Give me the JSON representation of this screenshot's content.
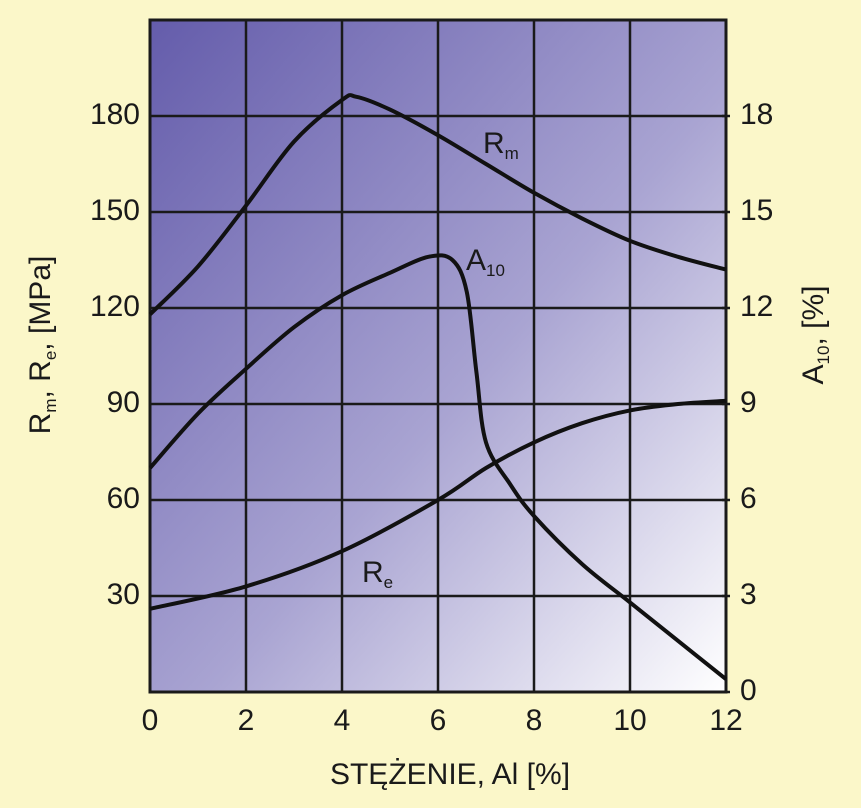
{
  "chart_data": {
    "type": "line",
    "xlabel": "STĘŻENIE, Al [%]",
    "ylabel": [
      {
        "text": "R"
      },
      {
        "sub": "m"
      },
      {
        "text": ", R"
      },
      {
        "sub": "e"
      },
      {
        "text": ", [MPa]"
      }
    ],
    "y2label": [
      {
        "text": "A"
      },
      {
        "sub": "10"
      },
      {
        "text": ", [%]"
      }
    ],
    "xlim": [
      0,
      12
    ],
    "xticks": [
      0,
      2,
      4,
      6,
      8,
      10,
      12
    ],
    "ylim": [
      0,
      210
    ],
    "yticks": [
      30,
      60,
      90,
      120,
      150,
      180
    ],
    "y2lim": [
      0,
      21
    ],
    "y2ticks": [
      0,
      3,
      6,
      9,
      12,
      15,
      18
    ],
    "grid": true,
    "color": "#111111",
    "series": [
      {
        "name": "R",
        "name_sub": "m",
        "color": "#111111",
        "x": [
          0,
          1,
          2,
          3,
          4,
          4.3,
          5,
          6,
          7,
          8,
          9,
          10,
          11,
          12
        ],
        "values": [
          118,
          133,
          152,
          172,
          185,
          186,
          182,
          174,
          165,
          156,
          148,
          141,
          136,
          132
        ]
      },
      {
        "name": "A",
        "name_sub": "10",
        "color": "#111111",
        "axis": "y2",
        "x": [
          0,
          1,
          2,
          3,
          4,
          5,
          5.8,
          6.3,
          6.6,
          6.8,
          7,
          7.5,
          8,
          9,
          10,
          11,
          12
        ],
        "values": [
          7.0,
          8.7,
          10.1,
          11.4,
          12.4,
          13.1,
          13.6,
          13.5,
          12.5,
          10,
          7.8,
          6.5,
          5.5,
          4.0,
          2.8,
          1.6,
          0.4
        ]
      },
      {
        "name": "R",
        "name_sub": "e",
        "color": "#111111",
        "x": [
          0,
          2,
          4,
          6,
          7,
          8,
          9,
          10,
          11,
          12
        ],
        "values": [
          26,
          33,
          44,
          60,
          70,
          78,
          84,
          88,
          90,
          91
        ]
      }
    ]
  }
}
